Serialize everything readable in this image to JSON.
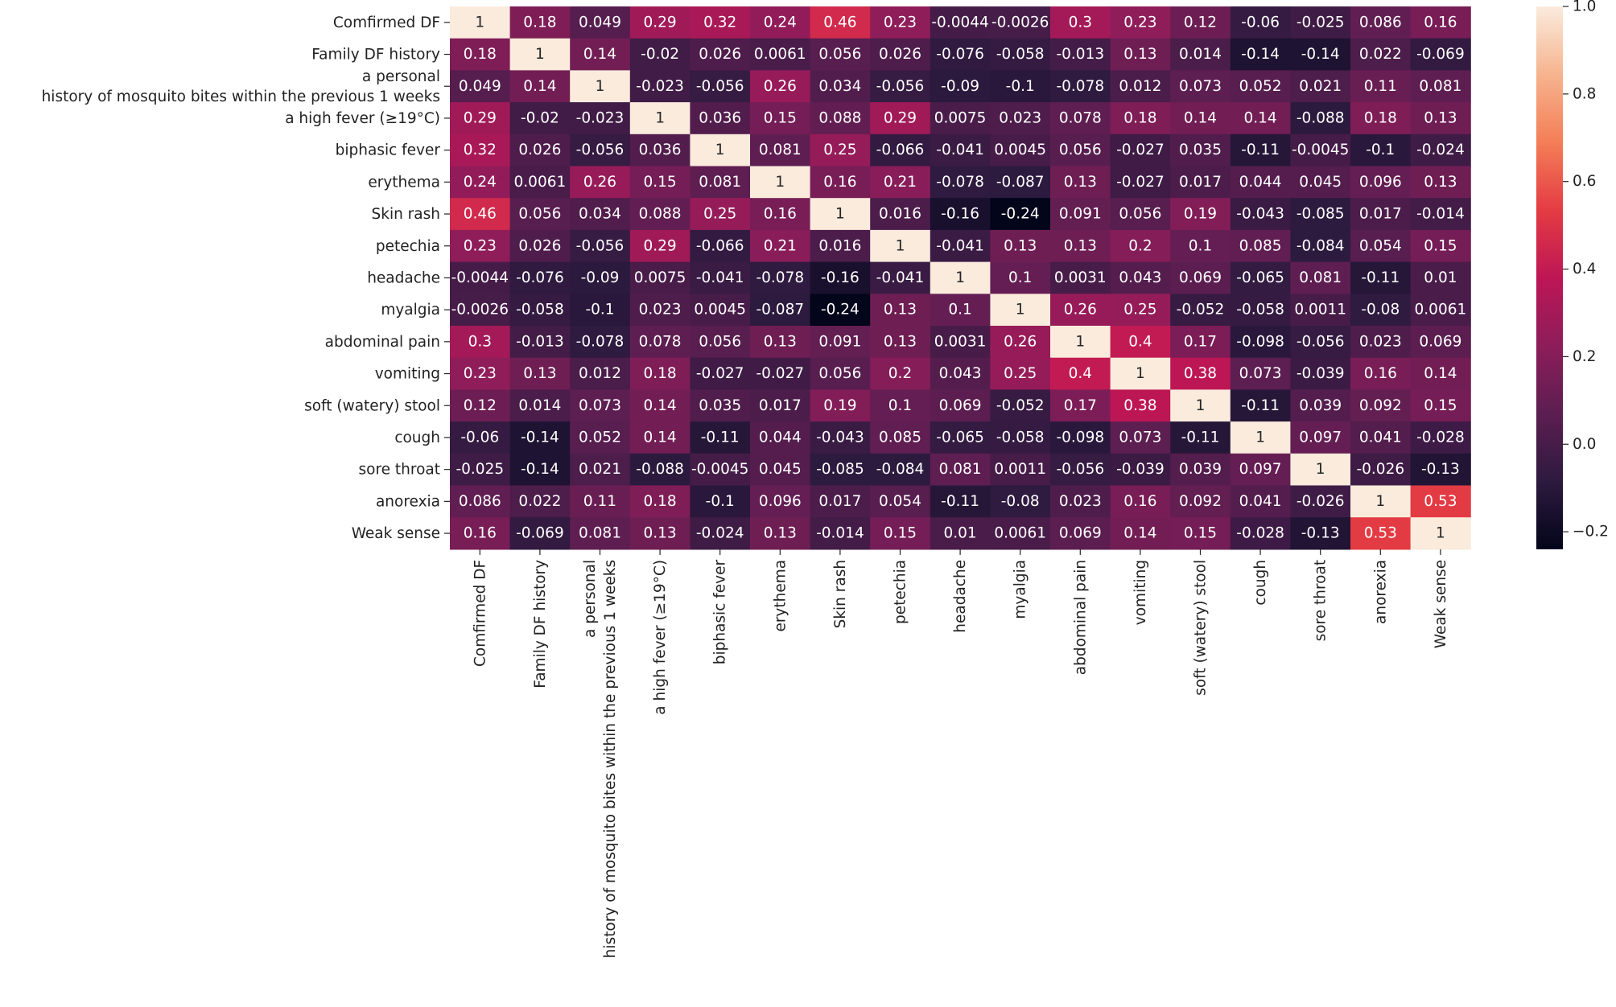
{
  "chart_data": {
    "type": "heatmap",
    "title": "",
    "xlabel": "",
    "ylabel": "",
    "row_labels": [
      "Comfirmed DF",
      "Family DF history",
      "a personal\nhistory of mosquito bites within the previous 1 weeks",
      "a high fever (≥19°C)",
      "biphasic fever",
      "erythema",
      "Skin rash",
      "petechia",
      "headache",
      "myalgia",
      "abdominal pain",
      "vomiting",
      "soft (watery) stool",
      "cough",
      "sore throat",
      "anorexia",
      "Weak sense"
    ],
    "col_labels": [
      "Comfirmed DF",
      "Family DF history",
      "a personal\nhistory of mosquito bites within the previous 1 weeks",
      "a high fever (≥19°C)",
      "biphasic fever",
      "erythema",
      "Skin rash",
      "petechia",
      "headache",
      "myalgia",
      "abdominal pain",
      "vomiting",
      "soft (watery) stool",
      "cough",
      "sore throat",
      "anorexia",
      "Weak sense"
    ],
    "values": [
      [
        1,
        0.18,
        0.049,
        0.29,
        0.32,
        0.24,
        0.46,
        0.23,
        -0.0044,
        -0.0026,
        0.3,
        0.23,
        0.12,
        -0.06,
        -0.025,
        0.086,
        0.16
      ],
      [
        0.18,
        1,
        0.14,
        -0.02,
        0.026,
        0.0061,
        0.056,
        0.026,
        -0.076,
        -0.058,
        -0.013,
        0.13,
        0.014,
        -0.14,
        -0.14,
        0.022,
        -0.069
      ],
      [
        0.049,
        0.14,
        1,
        -0.023,
        -0.056,
        0.26,
        0.034,
        -0.056,
        -0.09,
        -0.1,
        -0.078,
        0.012,
        0.073,
        0.052,
        0.021,
        0.11,
        0.081
      ],
      [
        0.29,
        -0.02,
        -0.023,
        1,
        0.036,
        0.15,
        0.088,
        0.29,
        0.0075,
        0.023,
        0.078,
        0.18,
        0.14,
        0.14,
        -0.088,
        0.18,
        0.13
      ],
      [
        0.32,
        0.026,
        -0.056,
        0.036,
        1,
        0.081,
        0.25,
        -0.066,
        -0.041,
        0.0045,
        0.056,
        -0.027,
        0.035,
        -0.11,
        -0.0045,
        -0.1,
        -0.024
      ],
      [
        0.24,
        0.0061,
        0.26,
        0.15,
        0.081,
        1,
        0.16,
        0.21,
        -0.078,
        -0.087,
        0.13,
        -0.027,
        0.017,
        0.044,
        0.045,
        0.096,
        0.13
      ],
      [
        0.46,
        0.056,
        0.034,
        0.088,
        0.25,
        0.16,
        1,
        0.016,
        -0.16,
        -0.24,
        0.091,
        0.056,
        0.19,
        -0.043,
        -0.085,
        0.017,
        -0.014
      ],
      [
        0.23,
        0.026,
        -0.056,
        0.29,
        -0.066,
        0.21,
        0.016,
        1,
        -0.041,
        0.13,
        0.13,
        0.2,
        0.1,
        0.085,
        -0.084,
        0.054,
        0.15
      ],
      [
        -0.0044,
        -0.076,
        -0.09,
        0.0075,
        -0.041,
        -0.078,
        -0.16,
        -0.041,
        1,
        0.1,
        0.0031,
        0.043,
        0.069,
        -0.065,
        0.081,
        -0.11,
        0.01
      ],
      [
        -0.0026,
        -0.058,
        -0.1,
        0.023,
        0.0045,
        -0.087,
        -0.24,
        0.13,
        0.1,
        1,
        0.26,
        0.25,
        -0.052,
        -0.058,
        0.0011,
        -0.08,
        0.0061
      ],
      [
        0.3,
        -0.013,
        -0.078,
        0.078,
        0.056,
        0.13,
        0.091,
        0.13,
        0.0031,
        0.26,
        1,
        0.4,
        0.17,
        -0.098,
        -0.056,
        0.023,
        0.069
      ],
      [
        0.23,
        0.13,
        0.012,
        0.18,
        -0.027,
        -0.027,
        0.056,
        0.2,
        0.043,
        0.25,
        0.4,
        1,
        0.38,
        0.073,
        -0.039,
        0.16,
        0.14
      ],
      [
        0.12,
        0.014,
        0.073,
        0.14,
        0.035,
        0.017,
        0.19,
        0.1,
        0.069,
        -0.052,
        0.17,
        0.38,
        1,
        -0.11,
        0.039,
        0.092,
        0.15
      ],
      [
        -0.06,
        -0.14,
        0.052,
        0.14,
        -0.11,
        0.044,
        -0.043,
        0.085,
        -0.065,
        -0.058,
        -0.098,
        0.073,
        -0.11,
        1,
        0.097,
        0.041,
        -0.028
      ],
      [
        -0.025,
        -0.14,
        0.021,
        -0.088,
        -0.0045,
        0.045,
        -0.085,
        -0.084,
        0.081,
        0.0011,
        -0.056,
        -0.039,
        0.039,
        0.097,
        1,
        -0.026,
        -0.13
      ],
      [
        0.086,
        0.022,
        0.11,
        0.18,
        -0.1,
        0.096,
        0.017,
        0.054,
        -0.11,
        -0.08,
        0.023,
        0.16,
        0.092,
        0.041,
        -0.026,
        1,
        0.53
      ],
      [
        0.16,
        -0.069,
        0.081,
        0.13,
        -0.024,
        0.13,
        -0.014,
        0.15,
        0.01,
        0.0061,
        0.069,
        0.14,
        0.15,
        -0.028,
        -0.13,
        0.53,
        1
      ]
    ],
    "colorbar": {
      "vmin": -0.24,
      "vmax": 1.0,
      "ticks": [
        -0.2,
        0.0,
        0.2,
        0.4,
        0.6,
        0.8,
        1.0
      ],
      "tick_labels": [
        "−0.2",
        "0.0",
        "0.2",
        "0.4",
        "0.6",
        "0.8",
        "1.0"
      ],
      "colormap": "rocket",
      "stops": [
        "#03051a",
        "#2d1a3f",
        "#5c1e51",
        "#8d1d5a",
        "#bd1655",
        "#e43c43",
        "#f47e57",
        "#f6b48e",
        "#faebdd"
      ]
    }
  }
}
